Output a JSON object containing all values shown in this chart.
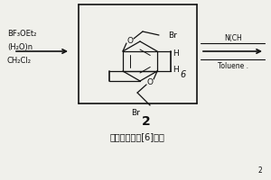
{
  "bg_color": "#f0f0eb",
  "title_text": "對溡乙氧基柱[6]芳烴",
  "compound_number": "2",
  "left_reagents": [
    "BF₃OEt₂",
    "(H₂O)n",
    "CH₂Cl₂"
  ],
  "right_reagents_top": "N(CH",
  "right_reagents_bottom": "Toluene .",
  "box_color": "#111111",
  "text_color": "#111111",
  "line_width": 1.0,
  "fig_w": 3.0,
  "fig_h": 2.0,
  "dpi": 100
}
